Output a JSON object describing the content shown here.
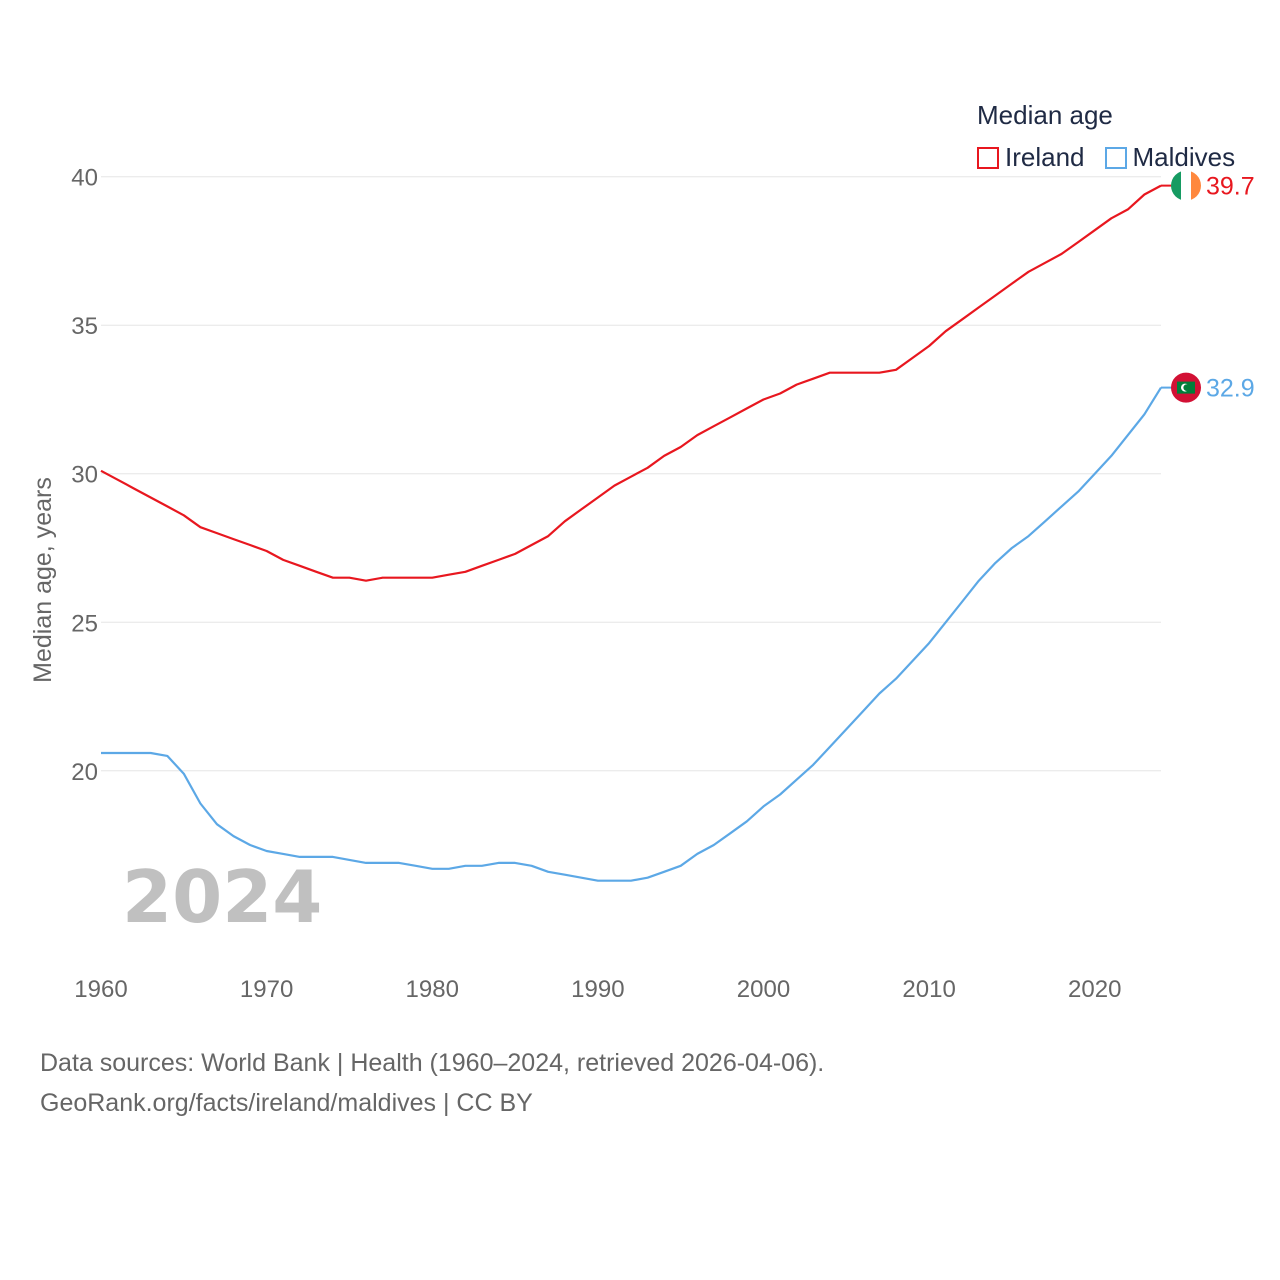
{
  "legend": {
    "title": "Median age"
  },
  "sources": {
    "line1": "Data sources: World Bank | Health (1960–2024, retrieved 2026-04-06).",
    "line2": "GeoRank.org/facts/ireland/maldives | CC BY"
  },
  "year_label": "2024",
  "chart_data": {
    "type": "line",
    "title": "Median age",
    "xlabel": "",
    "ylabel": "Median age, years",
    "xlim": [
      1960,
      2024
    ],
    "ylim": [
      14,
      41
    ],
    "y_ticks": [
      20,
      25,
      30,
      35,
      40
    ],
    "x_ticks": [
      1960,
      1970,
      1980,
      1990,
      2000,
      2010,
      2020
    ],
    "grid": true,
    "legend_position": "top-right",
    "x": [
      1960,
      1961,
      1962,
      1963,
      1964,
      1965,
      1966,
      1967,
      1968,
      1969,
      1970,
      1971,
      1972,
      1973,
      1974,
      1975,
      1976,
      1977,
      1978,
      1979,
      1980,
      1981,
      1982,
      1983,
      1984,
      1985,
      1986,
      1987,
      1988,
      1989,
      1990,
      1991,
      1992,
      1993,
      1994,
      1995,
      1996,
      1997,
      1998,
      1999,
      2000,
      2001,
      2002,
      2003,
      2004,
      2005,
      2006,
      2007,
      2008,
      2009,
      2010,
      2011,
      2012,
      2013,
      2014,
      2015,
      2016,
      2017,
      2018,
      2019,
      2020,
      2021,
      2022,
      2023,
      2024
    ],
    "series": [
      {
        "name": "Ireland",
        "color": "#e8171f",
        "end_label": "39.7",
        "flag_icon": "ireland-flag-icon",
        "values": [
          30.1,
          29.8,
          29.5,
          29.2,
          28.9,
          28.6,
          28.2,
          28.0,
          27.8,
          27.6,
          27.4,
          27.1,
          26.9,
          26.7,
          26.5,
          26.5,
          26.4,
          26.5,
          26.5,
          26.5,
          26.5,
          26.6,
          26.7,
          26.9,
          27.1,
          27.3,
          27.6,
          27.9,
          28.4,
          28.8,
          29.2,
          29.6,
          29.9,
          30.2,
          30.6,
          30.9,
          31.3,
          31.6,
          31.9,
          32.2,
          32.5,
          32.7,
          33.0,
          33.2,
          33.4,
          33.4,
          33.4,
          33.4,
          33.5,
          33.9,
          34.3,
          34.8,
          35.2,
          35.6,
          36.0,
          36.4,
          36.8,
          37.1,
          37.4,
          37.8,
          38.2,
          38.6,
          38.9,
          39.4,
          39.7
        ]
      },
      {
        "name": "Maldives",
        "color": "#5ca8e6",
        "end_label": "32.9",
        "flag_icon": "maldives-flag-icon",
        "values": [
          20.6,
          20.6,
          20.6,
          20.6,
          20.5,
          19.9,
          18.9,
          18.2,
          17.8,
          17.5,
          17.3,
          17.2,
          17.1,
          17.1,
          17.1,
          17.0,
          16.9,
          16.9,
          16.9,
          16.8,
          16.7,
          16.7,
          16.8,
          16.8,
          16.9,
          16.9,
          16.8,
          16.6,
          16.5,
          16.4,
          16.3,
          16.3,
          16.3,
          16.4,
          16.6,
          16.8,
          17.2,
          17.5,
          17.9,
          18.3,
          18.8,
          19.2,
          19.7,
          20.2,
          20.8,
          21.4,
          22.0,
          22.6,
          23.1,
          23.7,
          24.3,
          25.0,
          25.7,
          26.4,
          27.0,
          27.5,
          27.9,
          28.4,
          28.9,
          29.4,
          30.0,
          30.6,
          31.3,
          32.0,
          32.9
        ]
      }
    ]
  }
}
